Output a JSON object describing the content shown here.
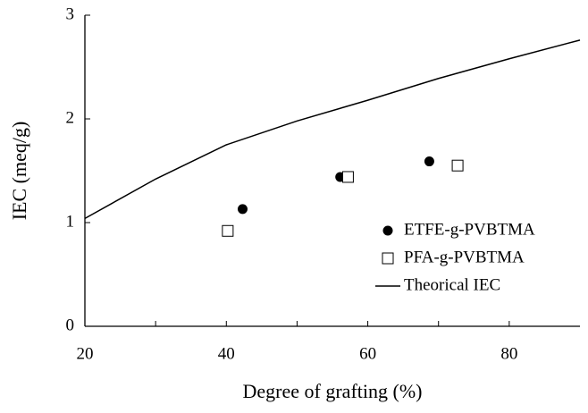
{
  "chart_data": {
    "type": "scatter",
    "xlabel": "Degree of grafting (%)",
    "ylabel": "IEC (meq/g)",
    "xlim": [
      20,
      90
    ],
    "ylim": [
      0,
      3
    ],
    "xticks": [
      20,
      40,
      60,
      80
    ],
    "xminorticks": [
      30,
      50,
      70
    ],
    "yticks": [
      0,
      1,
      2,
      3
    ],
    "series": [
      {
        "name": "ETFE-g-PVBTMA",
        "color": "#000000",
        "marker": "filled-circle",
        "x": [
          42.3,
          56.1,
          68.7
        ],
        "values": [
          1.13,
          1.44,
          1.59
        ]
      },
      {
        "name": "PFA-g-PVBTMA",
        "color": "#000000",
        "marker": "open-square",
        "x": [
          40.2,
          57.2,
          72.7
        ],
        "values": [
          0.92,
          1.44,
          1.55
        ]
      },
      {
        "name": "Theorical IEC",
        "color": "#000000",
        "marker": "line",
        "x": [
          20,
          30,
          40,
          50,
          60,
          70,
          80,
          90
        ],
        "values": [
          1.04,
          1.42,
          1.75,
          1.98,
          2.18,
          2.39,
          2.58,
          2.76
        ]
      }
    ]
  }
}
